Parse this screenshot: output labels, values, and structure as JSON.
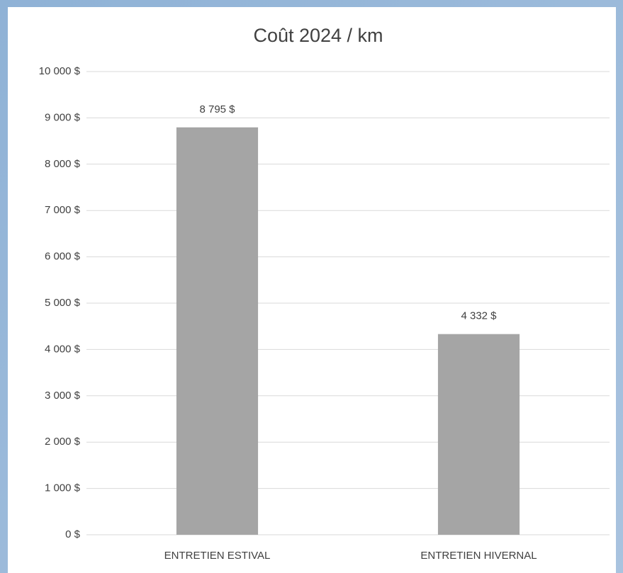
{
  "chart_data": {
    "type": "bar",
    "title": "Coût 2024 / km",
    "categories": [
      "ENTRETIEN ESTIVAL",
      "ENTRETIEN HIVERNAL"
    ],
    "values": [
      8795,
      4332
    ],
    "value_labels": [
      "8 795 $",
      "4 332 $"
    ],
    "color": "#a5a5a5",
    "ylim": [
      0,
      10000
    ],
    "yticks": [
      {
        "value": 0,
        "label": "0 $"
      },
      {
        "value": 1000,
        "label": "1 000 $"
      },
      {
        "value": 2000,
        "label": "2 000 $"
      },
      {
        "value": 3000,
        "label": "3 000 $"
      },
      {
        "value": 4000,
        "label": "4 000 $"
      },
      {
        "value": 5000,
        "label": "5 000 $"
      },
      {
        "value": 6000,
        "label": "6 000 $"
      },
      {
        "value": 7000,
        "label": "7 000 $"
      },
      {
        "value": 8000,
        "label": "8 000 $"
      },
      {
        "value": 9000,
        "label": "9 000 $"
      },
      {
        "value": 10000,
        "label": "10 000 $"
      }
    ],
    "grid": true
  }
}
